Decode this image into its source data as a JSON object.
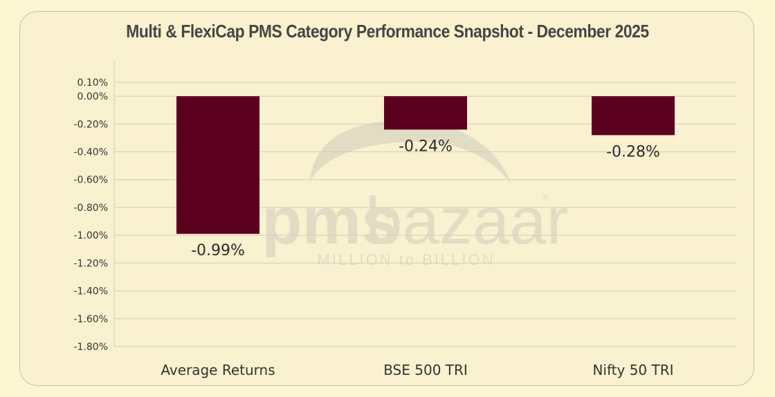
{
  "watermark": {
    "brand_prefix": "pms",
    "brand_suffix": "bazaar",
    "registered": "®",
    "tagline": "MILLION to BILLION"
  },
  "colors": {
    "background": "#fdf6d3",
    "bar": "#5c0020",
    "grid": "#d2cdbd",
    "watermark": "#e2dcc4"
  },
  "chart_data": {
    "type": "bar",
    "title": "Multi & FlexiCap PMS Category Performance Snapshot - December 2025",
    "categories": [
      "Average Returns",
      "BSE 500 TRI",
      "Nifty 50 TRI"
    ],
    "values": [
      -0.99,
      -0.24,
      -0.28
    ],
    "data_labels": [
      "-0.99%",
      "-0.24%",
      "-0.28%"
    ],
    "y_ticks": [
      "0.10%",
      "0.00%",
      "-0.20%",
      "-0.40%",
      "-0.60%",
      "-0.80%",
      "-1.00%",
      "-1.20%",
      "-1.40%",
      "-1.60%",
      "-1.80%"
    ],
    "ylim": [
      -1.8,
      0.1
    ],
    "grid": true,
    "legend": "none",
    "xlabel": "",
    "ylabel": ""
  }
}
